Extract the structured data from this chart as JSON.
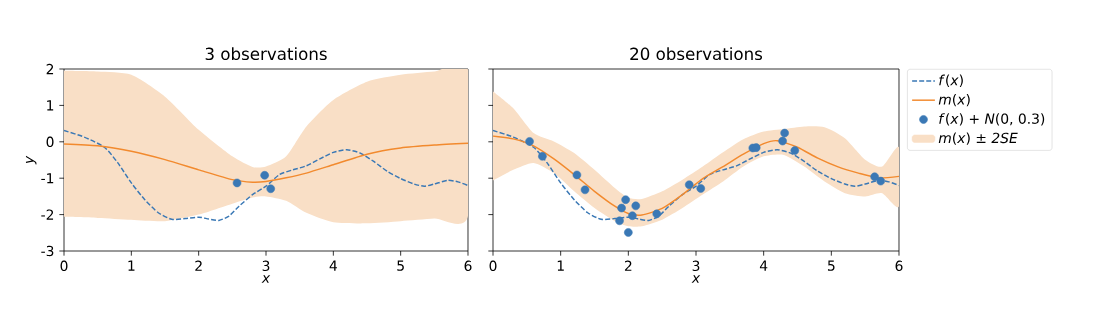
{
  "chart_data": [
    {
      "type": "line",
      "title": "3 observations",
      "xlabel": "x",
      "ylabel": "y",
      "xlim": [
        0,
        6
      ],
      "ylim": [
        -3,
        2
      ],
      "xticks": [
        0,
        1,
        2,
        3,
        4,
        5,
        6
      ],
      "yticks": [
        -3,
        -2,
        -1,
        0,
        1,
        2
      ],
      "series": [
        {
          "type": "area",
          "color": "#f9dfc6",
          "x": [
            0,
            0.5,
            1.0,
            1.5,
            2.0,
            2.5,
            2.8,
            3.0,
            3.3,
            3.6,
            4.0,
            4.5,
            5.0,
            5.5,
            6.0
          ],
          "values": [
            null,
            null,
            null,
            null,
            null,
            null,
            null,
            null,
            null,
            null,
            null,
            null,
            null,
            null,
            null
          ],
          "upper": [
            1.95,
            1.93,
            1.84,
            1.24,
            0.33,
            -0.4,
            -0.69,
            -0.68,
            -0.4,
            0.42,
            1.15,
            1.65,
            1.84,
            1.93,
            1.97
          ],
          "lower": [
            -2.06,
            -2.09,
            -2.14,
            -2.18,
            -2.0,
            -1.7,
            -1.53,
            -1.5,
            -1.62,
            -1.95,
            -2.21,
            -2.24,
            -2.18,
            -2.11,
            -2.04
          ]
        },
        {
          "color": "#3a78b5",
          "line_style": "dashed",
          "x": [
            0,
            0.3,
            0.6,
            0.8,
            1.0,
            1.2,
            1.4,
            1.6,
            1.8,
            2.0,
            2.15,
            2.3,
            2.45,
            2.6,
            2.8,
            3.0,
            3.2,
            3.4,
            3.6,
            3.8,
            4.0,
            4.2,
            4.4,
            4.6,
            4.8,
            5.0,
            5.2,
            5.35,
            5.5,
            5.7,
            5.85,
            6.0
          ],
          "values": [
            0.31,
            0.13,
            -0.15,
            -0.58,
            -1.13,
            -1.59,
            -1.95,
            -2.13,
            -2.11,
            -2.07,
            -2.12,
            -2.16,
            -2.04,
            -1.77,
            -1.45,
            -1.22,
            -0.9,
            -0.77,
            -0.66,
            -0.47,
            -0.29,
            -0.22,
            -0.31,
            -0.54,
            -0.81,
            -1.01,
            -1.16,
            -1.22,
            -1.16,
            -1.06,
            -1.1,
            -1.2
          ]
        },
        {
          "color": "#f28a2e",
          "line_style": "solid",
          "x": [
            0,
            0.5,
            1.0,
            1.5,
            2.0,
            2.5,
            2.8,
            3.0,
            3.3,
            3.6,
            4.0,
            4.5,
            5.0,
            5.5,
            6.0
          ],
          "values": [
            -0.06,
            -0.11,
            -0.26,
            -0.49,
            -0.77,
            -1.04,
            -1.11,
            -1.09,
            -0.99,
            -0.86,
            -0.63,
            -0.34,
            -0.17,
            -0.09,
            -0.04
          ]
        },
        {
          "type": "scatter",
          "marker": "circle",
          "color": "#3a78b5",
          "x": [
            2.57,
            2.98,
            3.07
          ],
          "values": [
            -1.13,
            -0.92,
            -1.29
          ]
        }
      ]
    },
    {
      "type": "line",
      "title": "20 observations",
      "xlabel": "x",
      "xlim": [
        0,
        6
      ],
      "ylim": [
        -3,
        2
      ],
      "xticks": [
        0,
        1,
        2,
        3,
        4,
        5,
        6
      ],
      "yticks": [
        -3,
        -2,
        -1,
        0,
        1,
        2
      ],
      "tick_labels": "x",
      "legend": "right",
      "series": [
        {
          "name": "*f*(*x*)",
          "color": "#3a78b5",
          "line_style": "dashed",
          "x": [
            0,
            0.3,
            0.6,
            0.8,
            1.0,
            1.2,
            1.4,
            1.6,
            1.8,
            2.0,
            2.15,
            2.3,
            2.45,
            2.6,
            2.8,
            3.0,
            3.2,
            3.4,
            3.6,
            3.8,
            4.0,
            4.2,
            4.4,
            4.6,
            4.8,
            5.0,
            5.2,
            5.35,
            5.5,
            5.7,
            5.85,
            6.0
          ],
          "values": [
            0.31,
            0.13,
            -0.15,
            -0.58,
            -1.13,
            -1.59,
            -1.95,
            -2.13,
            -2.11,
            -2.07,
            -2.12,
            -2.16,
            -2.04,
            -1.77,
            -1.45,
            -1.22,
            -0.9,
            -0.77,
            -0.66,
            -0.47,
            -0.29,
            -0.22,
            -0.31,
            -0.54,
            -0.81,
            -1.01,
            -1.16,
            -1.22,
            -1.16,
            -1.06,
            -1.1,
            -1.2
          ]
        },
        {
          "name": "*m*(*x*)",
          "color": "#f28a2e",
          "line_style": "solid",
          "x": [
            0,
            0.3,
            0.6,
            0.9,
            1.2,
            1.5,
            1.8,
            2.0,
            2.2,
            2.5,
            2.8,
            3.1,
            3.4,
            3.7,
            4.0,
            4.2,
            4.5,
            4.8,
            5.1,
            5.4,
            5.7,
            6.0
          ],
          "values": [
            0.16,
            0.08,
            -0.11,
            -0.47,
            -0.9,
            -1.36,
            -1.77,
            -1.97,
            -2.01,
            -1.83,
            -1.45,
            -1.01,
            -0.68,
            -0.34,
            -0.05,
            0.03,
            -0.15,
            -0.45,
            -0.69,
            -0.86,
            -0.99,
            -0.95
          ]
        },
        {
          "name": "*f*(*x*) + *N*(0, 0.3)",
          "type": "scatter",
          "marker": "circle",
          "color": "#3a78b5",
          "x": [
            0.54,
            0.73,
            1.24,
            1.36,
            1.96,
            1.9,
            2.11,
            1.87,
            2.06,
            2.0,
            2.42,
            2.9,
            3.07,
            3.84,
            3.89,
            4.28,
            4.31,
            4.46,
            5.64,
            5.73
          ],
          "values": [
            0.01,
            -0.4,
            -0.91,
            -1.32,
            -1.59,
            -1.82,
            -1.76,
            -2.17,
            -2.03,
            -2.49,
            -1.98,
            -1.18,
            -1.28,
            -0.17,
            -0.16,
            0.02,
            0.24,
            -0.24,
            -0.96,
            -1.08
          ]
        },
        {
          "name": "*m*(*x*) ± *2SE*",
          "type": "area",
          "color": "#f9dfc6",
          "x": [
            0,
            0.3,
            0.6,
            0.9,
            1.2,
            1.5,
            1.8,
            2.0,
            2.2,
            2.5,
            2.8,
            3.1,
            3.4,
            3.7,
            4.0,
            4.3,
            4.6,
            4.9,
            5.2,
            5.5,
            5.75,
            6.0
          ],
          "values": [
            null,
            null,
            null,
            null,
            null,
            null,
            null,
            null,
            null,
            null,
            null,
            null,
            null,
            null,
            null,
            null,
            null,
            null,
            null,
            null,
            null,
            null
          ],
          "upper": [
            1.38,
            0.92,
            0.24,
            0.01,
            -0.31,
            -0.77,
            -1.27,
            -1.54,
            -1.57,
            -1.36,
            -1.04,
            -0.68,
            -0.29,
            0.07,
            0.28,
            0.35,
            0.42,
            0.4,
            0.1,
            -0.49,
            -0.68,
            -0.15
          ],
          "lower": [
            -1.06,
            -0.77,
            -0.58,
            -0.86,
            -1.36,
            -1.82,
            -2.18,
            -2.32,
            -2.32,
            -2.14,
            -1.82,
            -1.45,
            -1.09,
            -0.68,
            -0.4,
            -0.36,
            -0.68,
            -1.09,
            -1.41,
            -1.5,
            -1.41,
            -1.77
          ]
        }
      ]
    }
  ]
}
